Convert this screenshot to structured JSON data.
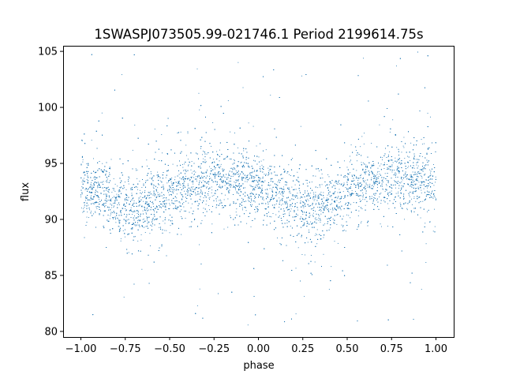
{
  "chart_data": {
    "type": "scatter",
    "title": "1SWASPJ073505.99-021746.1 Period 2199614.75s",
    "xlabel": "phase",
    "ylabel": "flux",
    "xlim": [
      -1.1,
      1.1
    ],
    "ylim": [
      79.5,
      105.5
    ],
    "x_ticks": [
      -1.0,
      -0.75,
      -0.5,
      -0.25,
      0.0,
      0.25,
      0.5,
      0.75,
      1.0
    ],
    "x_tick_labels": [
      "−1.00",
      "−0.75",
      "−0.50",
      "−0.25",
      "0.00",
      "0.25",
      "0.50",
      "0.75",
      "1.00"
    ],
    "y_ticks": [
      80,
      85,
      90,
      95,
      100,
      105
    ],
    "y_tick_labels": [
      "80",
      "85",
      "90",
      "95",
      "100",
      "105"
    ],
    "grid": false,
    "marker_color": "#1f77b4",
    "series": [
      {
        "phase_range": [
          -1.0,
          1.0
        ],
        "baseline_points": [
          [
            -1.0,
            93.2
          ],
          [
            -0.9,
            92.8
          ],
          [
            -0.8,
            91.5
          ],
          [
            -0.7,
            91.0
          ],
          [
            -0.6,
            91.7
          ],
          [
            -0.5,
            92.3
          ],
          [
            -0.4,
            93.0
          ],
          [
            -0.3,
            93.5
          ],
          [
            -0.2,
            93.6
          ],
          [
            -0.1,
            93.3
          ],
          [
            0.0,
            92.8
          ],
          [
            0.1,
            92.2
          ],
          [
            0.2,
            91.4
          ],
          [
            0.3,
            91.0
          ],
          [
            0.4,
            91.6
          ],
          [
            0.5,
            92.3
          ],
          [
            0.6,
            93.0
          ],
          [
            0.7,
            93.4
          ],
          [
            0.8,
            93.6
          ],
          [
            0.9,
            93.4
          ],
          [
            1.0,
            93.2
          ]
        ],
        "approx_scatter_sd": 1.4,
        "outlier_range": [
          80.5,
          105
        ]
      }
    ]
  }
}
